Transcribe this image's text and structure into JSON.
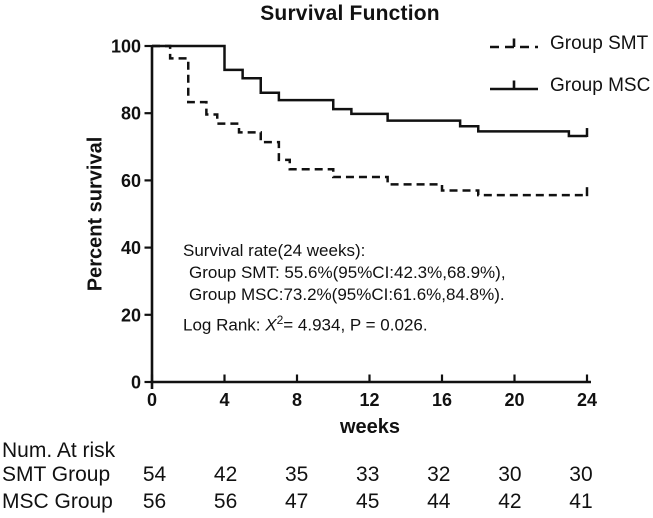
{
  "colors": {
    "line": "#111111",
    "text": "#111111",
    "background": "#ffffff"
  },
  "legend": {
    "entries": [
      {
        "label": "Group SMT",
        "style": "dashed"
      },
      {
        "label": "Group MSC",
        "style": "solid"
      }
    ]
  },
  "annotation": {
    "lines": [
      "Survival rate(24 weeks):",
      "Group SMT: 55.6%(95%CI:42.3%,68.9%),",
      "Group MSC:73.2%(95%CI:61.6%,84.8%)."
    ],
    "logrank": {
      "prefix": "Log Rank: ",
      "stat": "X",
      "exponent": "2",
      "rest": "= 4.934, P = 0.026."
    }
  },
  "at_risk": {
    "header": "Num. At risk",
    "columns_weeks": [
      0,
      4,
      8,
      12,
      16,
      20,
      24
    ],
    "rows": [
      {
        "label": "SMT Group",
        "values": [
          54,
          42,
          35,
          33,
          32,
          30,
          30
        ]
      },
      {
        "label": "MSC Group",
        "values": [
          56,
          56,
          47,
          45,
          44,
          42,
          41
        ]
      }
    ]
  },
  "chart_data": {
    "type": "line",
    "subtype": "kaplan-meier-step",
    "title": "Survival Function",
    "xlabel": "weeks",
    "ylabel": "Percent survival",
    "xlim": [
      0,
      24
    ],
    "ylim": [
      0,
      100
    ],
    "xticks": [
      0,
      4,
      8,
      12,
      16,
      20,
      24
    ],
    "yticks": [
      0,
      20,
      40,
      60,
      80,
      100
    ],
    "grid": false,
    "legend_position": "top-right",
    "series": [
      {
        "name": "Group SMT",
        "style": "dashed",
        "end_tick": true,
        "steps": [
          [
            0,
            100
          ],
          [
            1,
            96.3
          ],
          [
            2,
            83.3
          ],
          [
            3,
            79.6
          ],
          [
            3.6,
            76.9
          ],
          [
            4.8,
            74.3
          ],
          [
            6,
            71.4
          ],
          [
            7,
            66.1
          ],
          [
            7.6,
            63.3
          ],
          [
            10,
            61.0
          ],
          [
            13,
            58.8
          ],
          [
            16,
            57.0
          ],
          [
            18,
            55.6
          ],
          [
            24,
            55.6
          ]
        ]
      },
      {
        "name": "Group MSC",
        "style": "solid",
        "end_tick": true,
        "steps": [
          [
            0,
            100
          ],
          [
            4,
            92.9
          ],
          [
            5,
            90.4
          ],
          [
            6,
            86.1
          ],
          [
            7,
            83.9
          ],
          [
            10,
            81.2
          ],
          [
            11,
            79.8
          ],
          [
            13,
            77.8
          ],
          [
            17,
            76.1
          ],
          [
            18,
            74.6
          ],
          [
            23,
            73.2
          ],
          [
            24,
            73.2
          ]
        ]
      }
    ]
  }
}
